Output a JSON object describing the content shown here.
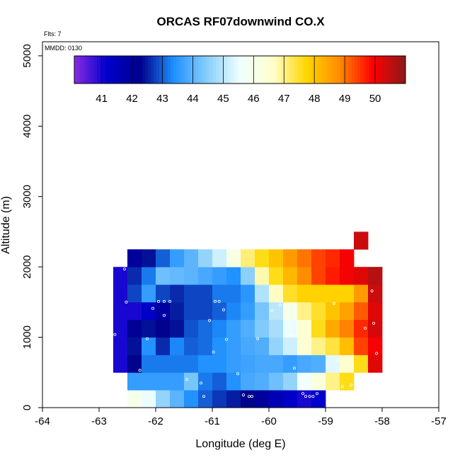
{
  "chart_data": {
    "type": "heatmap",
    "title": "ORCAS RF07downwind CO.X",
    "flights_label": "Flts: 7",
    "date_label": "MMDD: 0130",
    "xlabel": "Longitude (deg E)",
    "ylabel": "Altitude (m)",
    "xlim": [
      -64,
      -57
    ],
    "ylim": [
      0,
      5200
    ],
    "xticks": [
      -64,
      -63,
      -62,
      -61,
      -60,
      -59,
      -58,
      -57
    ],
    "xtick_labels": [
      "-64",
      "-63",
      "-62",
      "-61",
      "-60",
      "-59",
      "-58",
      "-57"
    ],
    "yticks": [
      0,
      1000,
      2000,
      3000,
      4000,
      5000
    ],
    "ytick_labels": [
      "0",
      "1000",
      "2000",
      "3000",
      "4000",
      "5000"
    ],
    "colorbar": {
      "vmin": 40.1,
      "vmax": 51.0,
      "ticks": [
        41,
        42,
        43,
        44,
        45,
        46,
        47,
        48,
        49,
        50
      ],
      "tick_labels": [
        "41",
        "42",
        "43",
        "44",
        "45",
        "46",
        "47",
        "48",
        "49",
        "50"
      ],
      "stops": [
        "#8a2be2",
        "#0000cd",
        "#00008b",
        "#1e90ff",
        "#87cefa",
        "#f0ffff",
        "#ffffcc",
        "#ffd700",
        "#ff8c00",
        "#ff0000",
        "#8b1a1a"
      ]
    },
    "cell": {
      "dlon": 0.25,
      "dalt": 250,
      "lon_start": -62.75,
      "alt_start": 0
    },
    "rows": [
      {
        "alt": 0,
        "lon0": -62.5,
        "values": [
          46.0,
          45.5,
          44.6,
          44.0,
          43.4,
          43.0,
          42.7,
          42.5,
          42.3,
          42.0,
          41.6,
          41.3,
          41.0,
          41.2
        ]
      },
      {
        "alt": 250,
        "lon0": -62.5,
        "values": [
          43.6,
          43.6,
          43.6,
          43.6,
          44.3,
          43.2,
          43.0,
          43.4,
          43.8,
          43.9,
          44.2,
          44.6,
          45.6,
          46.3,
          47.0,
          47.6
        ]
      },
      {
        "alt": 500,
        "lon0": -62.75,
        "values": [
          41.0,
          42.3,
          43.2,
          43.2,
          43.2,
          43.2,
          43.4,
          43.4,
          43.6,
          43.7,
          43.8,
          43.8,
          43.6,
          43.8,
          43.9,
          45.4,
          46.6,
          47.6,
          50.2
        ]
      },
      {
        "alt": 750,
        "lon0": -62.75,
        "values": [
          41.0,
          42.4,
          43.4,
          42.6,
          43.3,
          43.0,
          43.1,
          43.4,
          43.6,
          43.8,
          43.9,
          44.6,
          45.2,
          46.5,
          47.0,
          47.4,
          48.1,
          49.4,
          50.0
        ]
      },
      {
        "alt": 1000,
        "lon0": -62.75,
        "values": [
          41.0,
          42.1,
          42.4,
          42.3,
          42.4,
          42.9,
          43.1,
          43.3,
          43.6,
          43.9,
          44.4,
          44.8,
          45.5,
          46.5,
          47.6,
          48.4,
          48.9,
          49.6,
          50.3
        ]
      },
      {
        "alt": 1250,
        "lon0": -62.75,
        "values": [
          41.0,
          41.0,
          41.3,
          41.9,
          42.5,
          42.8,
          42.8,
          43.0,
          43.3,
          43.6,
          44.3,
          45.0,
          46.0,
          47.0,
          47.5,
          48.0,
          48.5,
          49.2,
          50.2
        ]
      },
      {
        "alt": 1500,
        "lon0": -62.75,
        "values": [
          41.0,
          42.8,
          43.6,
          42.8,
          42.6,
          42.8,
          42.8,
          43.2,
          43.2,
          43.5,
          44.9,
          46.7,
          47.5,
          47.8,
          47.8,
          47.8,
          47.8,
          48.6,
          50.4
        ]
      },
      {
        "alt": 1750,
        "lon0": -62.75,
        "values": [
          41.0,
          42.6,
          43.2,
          44.2,
          44.1,
          44.0,
          43.8,
          43.6,
          43.4,
          44.5,
          46.8,
          47.6,
          48.2,
          48.8,
          49.4,
          49.7,
          50.0,
          50.2,
          50.6
        ]
      },
      {
        "alt": 2000,
        "lon0": -62.5,
        "values": [
          42.0,
          42.4,
          43.0,
          43.6,
          44.0,
          44.6,
          45.2,
          46.1,
          47.1,
          47.6,
          48.0,
          48.6,
          49.0,
          49.4,
          49.6,
          50.0
        ]
      },
      {
        "alt": 2250,
        "lon0": -58.5,
        "values": [
          50.4
        ]
      }
    ],
    "flight_points": [
      [
        -62.55,
        1970
      ],
      [
        -62.52,
        1500
      ],
      [
        -62.8,
        580
      ],
      [
        -62.72,
        1040
      ],
      [
        -62.28,
        530
      ],
      [
        -62.15,
        980
      ],
      [
        -62.05,
        1410
      ],
      [
        -61.95,
        1510
      ],
      [
        -61.85,
        1510
      ],
      [
        -61.75,
        1510
      ],
      [
        -61.85,
        1310
      ],
      [
        -61.45,
        400
      ],
      [
        -61.2,
        350
      ],
      [
        -61.15,
        160
      ],
      [
        -61.05,
        1240
      ],
      [
        -60.98,
        790
      ],
      [
        -60.95,
        1510
      ],
      [
        -60.88,
        1510
      ],
      [
        -60.8,
        1390
      ],
      [
        -60.75,
        970
      ],
      [
        -60.55,
        480
      ],
      [
        -60.45,
        180
      ],
      [
        -60.35,
        160
      ],
      [
        -60.3,
        160
      ],
      [
        -60.2,
        980
      ],
      [
        -59.95,
        1380
      ],
      [
        -59.85,
        1520
      ],
      [
        -59.8,
        1460
      ],
      [
        -59.6,
        1030
      ],
      [
        -59.55,
        560
      ],
      [
        -59.4,
        200
      ],
      [
        -59.35,
        160
      ],
      [
        -59.28,
        160
      ],
      [
        -59.22,
        160
      ],
      [
        -59.15,
        200
      ],
      [
        -58.85,
        1480
      ],
      [
        -58.8,
        680
      ],
      [
        -58.7,
        300
      ],
      [
        -58.55,
        320
      ],
      [
        -58.45,
        310
      ],
      [
        -58.35,
        300
      ],
      [
        -58.25,
        2150
      ],
      [
        -58.3,
        1130
      ],
      [
        -58.18,
        1660
      ],
      [
        -58.15,
        1200
      ],
      [
        -58.1,
        770
      ],
      [
        -58.12,
        360
      ]
    ]
  }
}
